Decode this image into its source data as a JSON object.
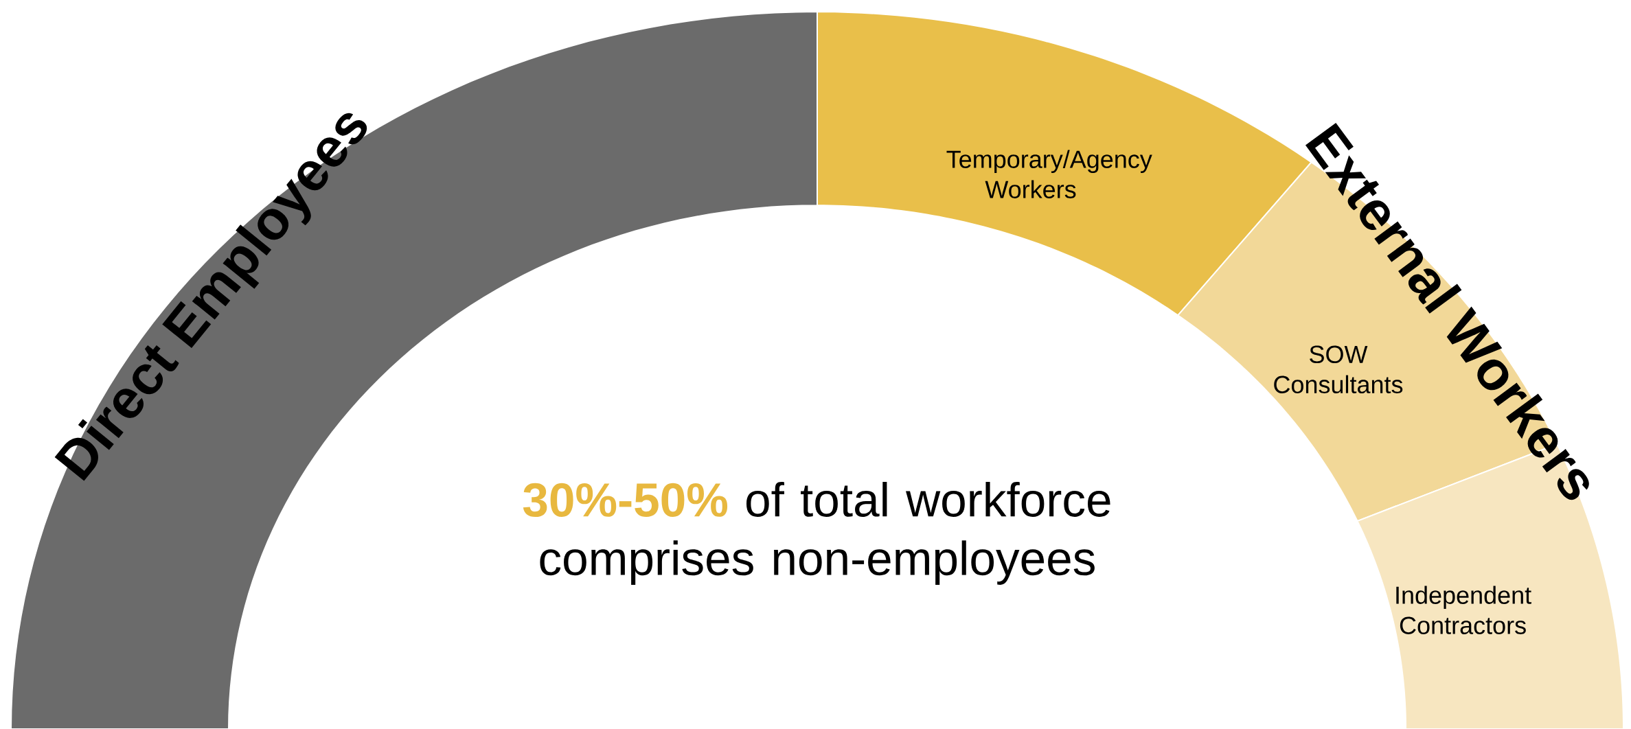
{
  "chart_data": {
    "type": "donut",
    "categories": [
      "Direct Employees",
      "Temporary/Agency Workers",
      "SOW Consultants",
      "Independent Contractors"
    ],
    "values": [
      50,
      21,
      16,
      13
    ],
    "colors": [
      "#6b6b6b",
      "#e9bf4a",
      "#f2d898",
      "#f7e6c0"
    ],
    "annotations": [
      "External Workers",
      "30%-50%",
      "of total workforce comprises non-employees"
    ]
  }
}
